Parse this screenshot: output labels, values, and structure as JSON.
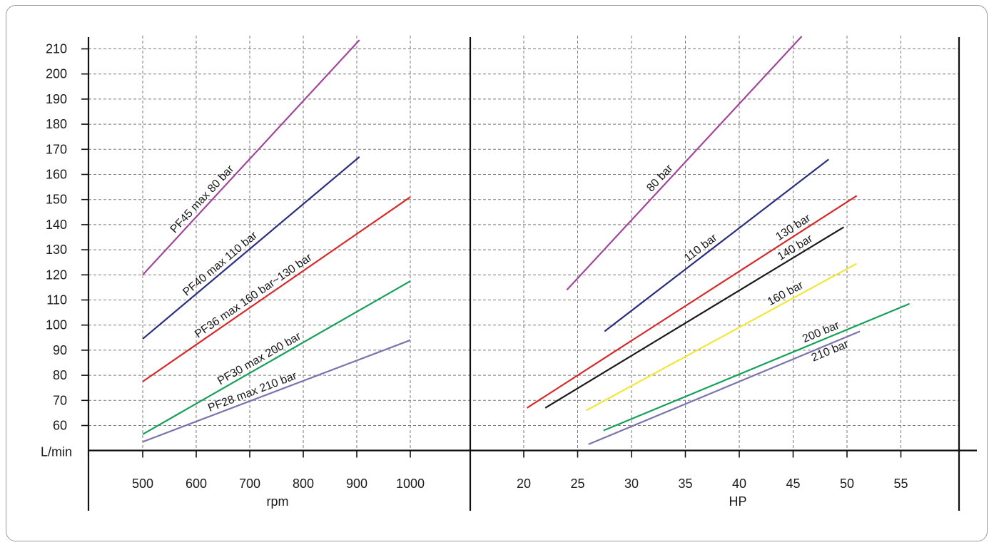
{
  "chart_data": [
    {
      "type": "line",
      "title": "",
      "xlabel": "rpm",
      "ylabel": "L/min",
      "xlim": [
        400,
        1100
      ],
      "ylim": [
        50,
        215
      ],
      "x_ticks": [
        "500",
        "600",
        "700",
        "800",
        "900",
        "1000"
      ],
      "y_ticks": [
        "60",
        "70",
        "80",
        "90",
        "100",
        "110",
        "120",
        "130",
        "140",
        "150",
        "160",
        "170",
        "180",
        "190",
        "200",
        "210"
      ],
      "grid": true,
      "series": [
        {
          "name": "PF45 max 80 bar",
          "color": "#a0479a",
          "x": [
            500,
            905
          ],
          "y": [
            120,
            213.5
          ]
        },
        {
          "name": "PF40 max 110 bar",
          "color": "#2a2f7d",
          "x": [
            500,
            905
          ],
          "y": [
            94.5,
            167
          ]
        },
        {
          "name": "PF36 max 160 bar~130 bar",
          "color": "#d62a2a",
          "x": [
            500,
            1000
          ],
          "y": [
            77.5,
            151
          ]
        },
        {
          "name": "PF30 max 200 bar",
          "color": "#16a05a",
          "x": [
            500,
            1000
          ],
          "y": [
            56.5,
            117.5
          ]
        },
        {
          "name": "PF28 max 210 bar",
          "color": "#7c72b0",
          "x": [
            500,
            1000
          ],
          "y": [
            53.5,
            94
          ]
        }
      ]
    },
    {
      "type": "line",
      "title": "",
      "xlabel": "HP",
      "ylabel": "L/min",
      "xlim": [
        15,
        60
      ],
      "ylim": [
        50,
        215
      ],
      "x_ticks": [
        "20",
        "25",
        "30",
        "35",
        "40",
        "45",
        "50",
        "55"
      ],
      "grid": true,
      "series": [
        {
          "name": "80 bar",
          "color": "#a0479a",
          "x": [
            24,
            45.8
          ],
          "y": [
            114,
            215
          ]
        },
        {
          "name": "110 bar",
          "color": "#2a2f7d",
          "x": [
            27.5,
            48.3
          ],
          "y": [
            97.5,
            166
          ]
        },
        {
          "name": "130 bar",
          "color": "#d62a2a",
          "x": [
            20.3,
            50.9
          ],
          "y": [
            67,
            151.5
          ]
        },
        {
          "name": "140 bar",
          "color": "#1a1a1a",
          "x": [
            22,
            49.7
          ],
          "y": [
            67,
            139
          ]
        },
        {
          "name": "160 bar",
          "color": "#f2e63a",
          "x": [
            25.8,
            50.9
          ],
          "y": [
            66,
            124.5
          ]
        },
        {
          "name": "200 bar",
          "color": "#16a05a",
          "x": [
            27.4,
            55.8
          ],
          "y": [
            58,
            108.5
          ]
        },
        {
          "name": "210 bar",
          "color": "#7c72b0",
          "x": [
            26,
            51.2
          ],
          "y": [
            52.5,
            97.5
          ]
        }
      ]
    }
  ]
}
